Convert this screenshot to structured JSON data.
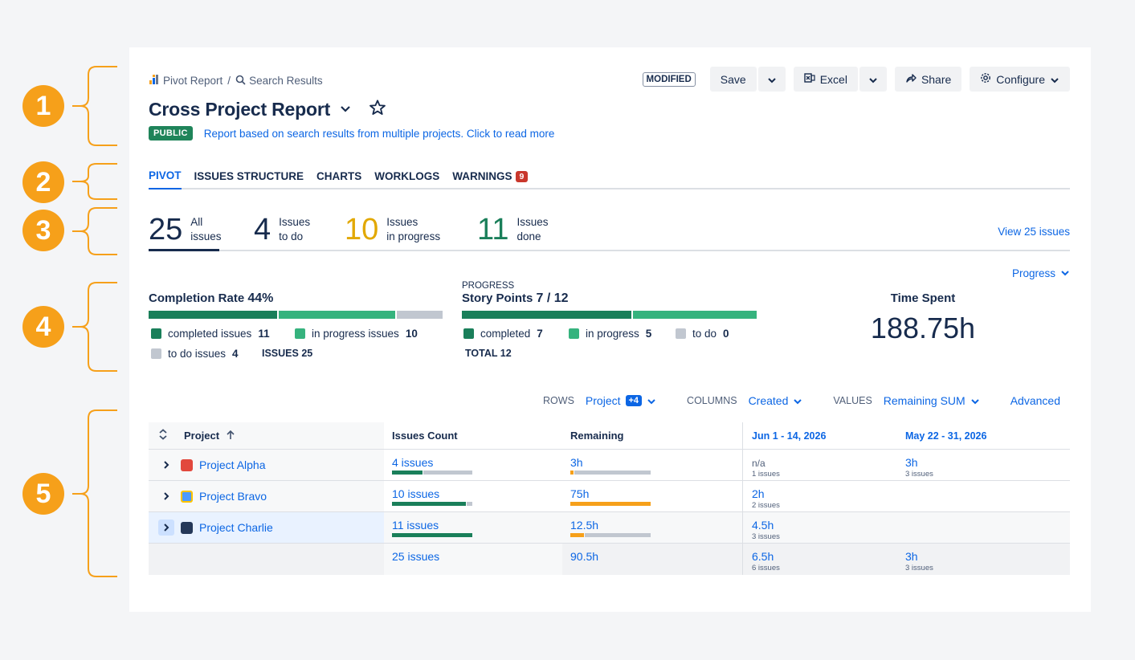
{
  "markers": [
    "1",
    "2",
    "3",
    "4",
    "5"
  ],
  "breadcrumb": {
    "root": "Pivot Report",
    "separator": "/",
    "current": "Search Results"
  },
  "header": {
    "title": "Cross Project Report",
    "visibility": "PUBLIC",
    "description": "Report based on search results from multiple projects. Click to read more"
  },
  "toolbar": {
    "modified": "MODIFIED",
    "save": "Save",
    "excel": "Excel",
    "share": "Share",
    "configure": "Configure"
  },
  "tabs": [
    {
      "label": "PIVOT",
      "active": true
    },
    {
      "label": "ISSUES STRUCTURE"
    },
    {
      "label": "CHARTS"
    },
    {
      "label": "WORKLOGS"
    },
    {
      "label": "WARNINGS",
      "badge": "9"
    }
  ],
  "stats": {
    "all": {
      "value": "25",
      "l1": "All",
      "l2": "issues"
    },
    "todo": {
      "value": "4",
      "l1": "Issues",
      "l2": "to do"
    },
    "inprogress": {
      "value": "10",
      "l1": "Issues",
      "l2": "in progress"
    },
    "done": {
      "value": "11",
      "l1": "Issues",
      "l2": "done"
    },
    "view_link": "View 25 issues"
  },
  "progress_dropdown": "Progress",
  "completion": {
    "title": "Completion Rate",
    "rate": "44%",
    "completed_label": "completed issues",
    "completed": "11",
    "inprogress_label": "in progress issues",
    "inprogress": "10",
    "todo_label": "to do issues",
    "todo": "4",
    "issues_label": "ISSUES",
    "issues": "25"
  },
  "story_points": {
    "caption": "PROGRESS",
    "title": "Story Points",
    "value": "7 / 12",
    "completed_label": "completed",
    "completed": "7",
    "inprogress_label": "in progress",
    "inprogress": "5",
    "todo_label": "to do",
    "todo": "0",
    "total_label": "TOTAL",
    "total": "12"
  },
  "time_spent": {
    "title": "Time Spent",
    "value": "188.75h"
  },
  "pivot_controls": {
    "rows_label": "ROWS",
    "rows_value": "Project",
    "rows_extra": "+4",
    "columns_label": "COLUMNS",
    "columns_value": "Created",
    "values_label": "VALUES",
    "values_value": "Remaining SUM",
    "advanced": "Advanced"
  },
  "table": {
    "headers": {
      "project": "Project",
      "issues_count": "Issues Count",
      "remaining": "Remaining",
      "d1": "Jun 1 - 14, 2026",
      "d2": "May 22 - 31, 2026"
    },
    "rows": [
      {
        "project": "Project Alpha",
        "issues": "4 issues",
        "remaining": "3h",
        "d1": "n/a",
        "d1_sub": "1 issues",
        "d2": "3h",
        "d2_sub": "3 issues"
      },
      {
        "project": "Project Bravo",
        "issues": "10 issues",
        "remaining": "75h",
        "d1": "2h",
        "d1_sub": "2 issues",
        "d2": "",
        "d2_sub": ""
      },
      {
        "project": "Project Charlie",
        "issues": "11 issues",
        "remaining": "12.5h",
        "d1": "4.5h",
        "d1_sub": "3 issues",
        "d2": "",
        "d2_sub": ""
      }
    ],
    "total": {
      "issues": "25 issues",
      "remaining": "90.5h",
      "d1": "6.5h",
      "d1_sub": "6 issues",
      "d2": "3h",
      "d2_sub": "3 issues"
    }
  },
  "colors": {
    "done": "#1a7f5a",
    "inprogress": "#36b37e",
    "todo": "#c1c7d0",
    "orange": "#f6a01a",
    "link": "#0c66e4",
    "warning": "#c9372c",
    "todo_stat": "#e2a800"
  }
}
